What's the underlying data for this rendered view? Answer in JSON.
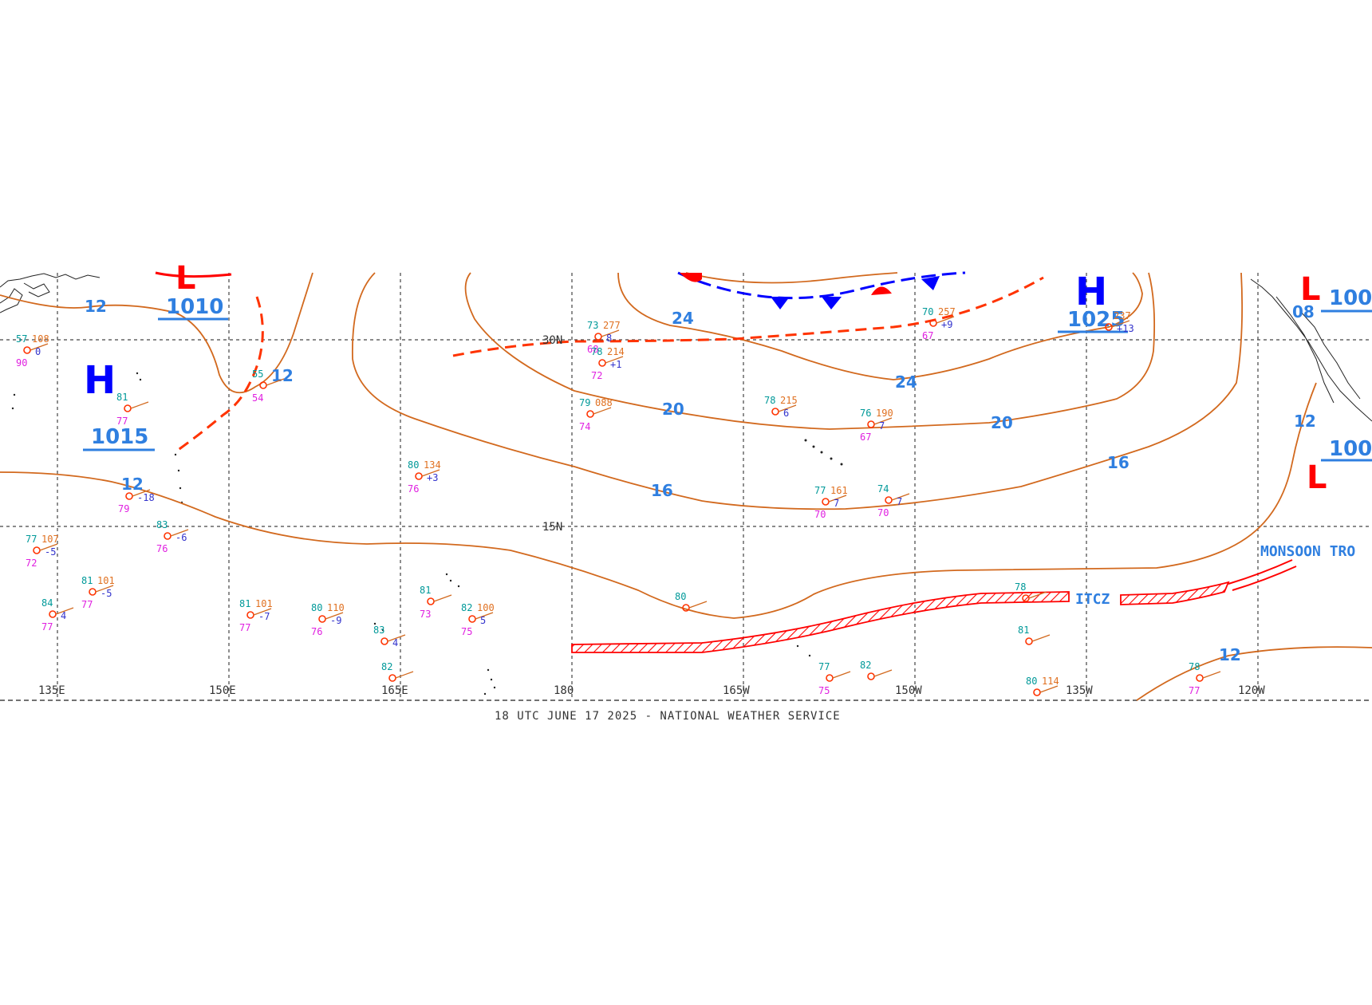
{
  "caption": "18 UTC JUNE 17 2025 - NATIONAL WEATHER SERVICE",
  "longitudes": [
    "135E",
    "150E",
    "165E",
    "180",
    "165W",
    "150W",
    "135W",
    "120W"
  ],
  "latitudes": [
    "30N",
    "15N"
  ],
  "isobar_labels": [
    "12",
    "12",
    "12",
    "16",
    "16",
    "20",
    "20",
    "24",
    "24",
    "12",
    "12",
    "08"
  ],
  "centers": [
    {
      "type": "H",
      "pressure": "1015"
    },
    {
      "type": "H",
      "pressure": "1025"
    },
    {
      "type": "L",
      "pressure": "1010"
    },
    {
      "type": "L",
      "pressure": "100"
    },
    {
      "type": "L",
      "pressure": "100"
    }
  ],
  "feature_labels": {
    "itcz": "ITCZ",
    "monsoon": "MONSOON TRO"
  },
  "colors": {
    "isobar": "#d2691e",
    "front_red": "#ff0000",
    "front_blue": "#0000ff",
    "label_blue": "#2f7fe0",
    "grid": "#444444"
  },
  "stations": [
    {
      "t": "73",
      "p": "277",
      "d": "68",
      "c": "8"
    },
    {
      "t": "78",
      "p": "214",
      "d": "72",
      "c": "+1"
    },
    {
      "t": "79",
      "p": "088",
      "d": "74",
      "c": ""
    },
    {
      "t": "78",
      "p": "215",
      "d": "",
      "c": "6"
    },
    {
      "t": "76",
      "p": "190",
      "d": "67",
      "c": "7"
    },
    {
      "t": "77",
      "p": "161",
      "d": "70",
      "c": "7"
    },
    {
      "t": "74",
      "p": "",
      "d": "70",
      "c": "7"
    },
    {
      "t": "70",
      "p": "257",
      "d": "67",
      "c": "+9"
    },
    {
      "t": "",
      "p": "237",
      "d": "",
      "c": "+13"
    },
    {
      "t": "80",
      "p": "134",
      "d": "76",
      "c": "+3"
    },
    {
      "t": "81",
      "p": "",
      "d": "77",
      "c": ""
    },
    {
      "t": "55",
      "p": "",
      "d": "54",
      "c": ""
    },
    {
      "t": "77",
      "p": "107",
      "d": "72",
      "c": "-5"
    },
    {
      "t": "81",
      "p": "101",
      "d": "77",
      "c": "-5"
    },
    {
      "t": "81",
      "p": "101",
      "d": "77",
      "c": "-7"
    },
    {
      "t": "80",
      "p": "110",
      "d": "76",
      "c": "-9"
    },
    {
      "t": "82",
      "p": "100",
      "d": "75",
      "c": "5"
    },
    {
      "t": "83",
      "p": "",
      "d": "76",
      "c": "-6"
    },
    {
      "t": "",
      "p": "",
      "d": "79",
      "c": "-18"
    },
    {
      "t": "80",
      "p": "",
      "d": "",
      "c": ""
    },
    {
      "t": "78",
      "p": "",
      "d": "",
      "c": ""
    },
    {
      "t": "81",
      "p": "",
      "d": "",
      "c": ""
    },
    {
      "t": "77",
      "p": "",
      "d": "75",
      "c": ""
    },
    {
      "t": "82",
      "p": "",
      "d": "",
      "c": ""
    },
    {
      "t": "80",
      "p": "114",
      "d": "",
      "c": ""
    },
    {
      "t": "78",
      "p": "",
      "d": "77",
      "c": ""
    },
    {
      "t": "83",
      "p": "",
      "d": "",
      "c": "4"
    },
    {
      "t": "84",
      "p": "",
      "d": "77",
      "c": "4"
    },
    {
      "t": "81",
      "p": "",
      "d": "73",
      "c": ""
    },
    {
      "t": "82",
      "p": "",
      "d": "",
      "c": ""
    },
    {
      "t": "57",
      "p": "108",
      "d": "90",
      "c": "0"
    }
  ]
}
